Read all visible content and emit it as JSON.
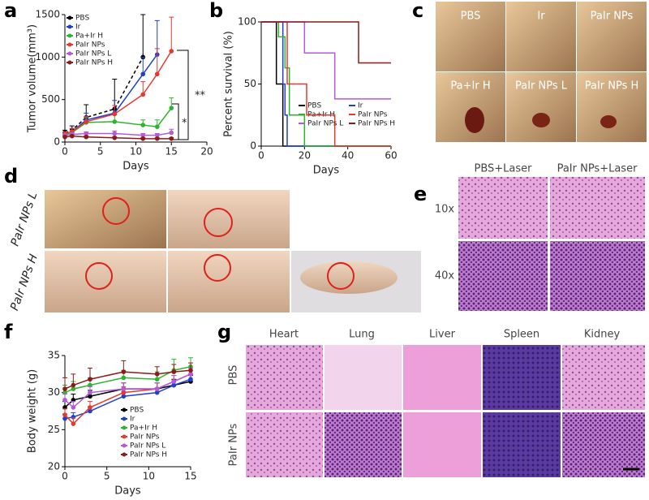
{
  "panels": [
    "a",
    "b",
    "c",
    "d",
    "e",
    "f",
    "g"
  ],
  "chart_data": [
    {
      "type": "line",
      "xlabel": "Days",
      "ylabel": "Tumor volume(mm³)",
      "xlim": [
        0,
        20
      ],
      "xticks": [
        0,
        5,
        10,
        15,
        20
      ],
      "ylim": [
        0,
        1500
      ],
      "yticks": [
        0,
        500,
        1000,
        1500
      ],
      "legend": "upper left",
      "annotations": [
        "**",
        "*"
      ],
      "x": [
        0,
        1,
        3,
        7,
        11,
        13,
        15
      ],
      "series": [
        {
          "name": "PBS",
          "color": "#000000",
          "dashed": true,
          "values": [
            110,
            140,
            290,
            390,
            1000,
            null,
            null
          ],
          "errors": [
            30,
            50,
            150,
            350,
            500,
            null,
            null
          ]
        },
        {
          "name": "Ir",
          "color": "#1f3fd1",
          "values": [
            100,
            120,
            260,
            340,
            800,
            1030,
            null
          ],
          "errors": [
            20,
            40,
            80,
            150,
            200,
            400,
            null
          ]
        },
        {
          "name": "Pa+Ir H",
          "color": "#2cb52c",
          "values": [
            90,
            110,
            230,
            240,
            200,
            180,
            400
          ],
          "errors": [
            20,
            30,
            60,
            80,
            60,
            80,
            120
          ]
        },
        {
          "name": "PaIr NPs",
          "color": "#e8382e",
          "values": [
            100,
            120,
            240,
            330,
            560,
            800,
            1070
          ],
          "errors": [
            20,
            40,
            60,
            100,
            150,
            300,
            400
          ]
        },
        {
          "name": "PaIr NPs L",
          "color": "#b45ad8",
          "values": [
            80,
            90,
            100,
            100,
            80,
            80,
            110
          ],
          "errors": [
            10,
            20,
            20,
            30,
            20,
            20,
            40
          ]
        },
        {
          "name": "PaIr NPs H",
          "color": "#8b1a1a",
          "values": [
            60,
            70,
            60,
            50,
            40,
            40,
            40
          ],
          "errors": [
            10,
            10,
            10,
            10,
            10,
            10,
            10
          ]
        }
      ]
    },
    {
      "type": "step",
      "xlabel": "Days",
      "ylabel": "Percent survival (%)",
      "xlim": [
        0,
        60
      ],
      "xticks": [
        0,
        20,
        40,
        60
      ],
      "ylim": [
        0,
        100
      ],
      "yticks": [
        0,
        50,
        100
      ],
      "legend": "lower center",
      "series": [
        {
          "name": "PBS",
          "color": "#000000",
          "x": [
            0,
            7,
            10
          ],
          "values": [
            100,
            50,
            0
          ]
        },
        {
          "name": "Ir",
          "color": "#1f3fd1",
          "x": [
            0,
            10,
            11,
            12
          ],
          "values": [
            100,
            50,
            25,
            0
          ]
        },
        {
          "name": "Pa+Ir H",
          "color": "#2cb52c",
          "x": [
            0,
            8,
            11,
            13,
            20
          ],
          "values": [
            100,
            88,
            63,
            25,
            0
          ]
        },
        {
          "name": "PaIr NPs",
          "color": "#e8382e",
          "x": [
            0,
            12,
            21,
            34
          ],
          "values": [
            100,
            50,
            25,
            0
          ]
        },
        {
          "name": "PaIr NPs L",
          "color": "#b45ad8",
          "x": [
            0,
            20,
            34,
            60
          ],
          "values": [
            100,
            75,
            38,
            38
          ]
        },
        {
          "name": "PaIr NPs H",
          "color": "#8b1a1a",
          "x": [
            0,
            45,
            60
          ],
          "values": [
            100,
            67,
            67
          ]
        }
      ]
    },
    {
      "type": "line",
      "xlabel": "Days",
      "ylabel": "Body weight (g)",
      "xlim": [
        0,
        15
      ],
      "xticks": [
        0,
        5,
        10,
        15
      ],
      "ylim": [
        20,
        35
      ],
      "yticks": [
        20,
        25,
        30,
        35
      ],
      "legend": "lower right",
      "x": [
        0,
        1,
        3,
        7,
        11,
        13,
        15
      ],
      "series": [
        {
          "name": "PBS",
          "color": "#000000",
          "values": [
            28,
            29,
            29.5,
            30.5,
            30.5,
            31,
            31.5
          ],
          "errors": [
            0.8,
            0.8,
            0.8,
            0.8,
            0.8,
            0.8,
            0.8
          ]
        },
        {
          "name": "Ir",
          "color": "#1f3fd1",
          "values": [
            26.5,
            26.7,
            27.5,
            29.5,
            30,
            31,
            31.8
          ],
          "errors": [
            0.6,
            0.6,
            0.6,
            0.6,
            0.6,
            0.6,
            0.6
          ]
        },
        {
          "name": "Pa+Ir H",
          "color": "#2cb52c",
          "values": [
            30,
            30.5,
            31,
            32,
            31.8,
            33,
            33.5
          ],
          "errors": [
            1,
            1,
            1,
            1,
            1,
            1.5,
            1.2
          ]
        },
        {
          "name": "PaIr NPs",
          "color": "#e8382e",
          "values": [
            27,
            25.8,
            28,
            30,
            30.5,
            31.5,
            32.5
          ],
          "errors": [
            0.8,
            0.8,
            0.8,
            0.8,
            0.8,
            0.8,
            0.8
          ]
        },
        {
          "name": "PaIr NPs L",
          "color": "#b45ad8",
          "values": [
            29,
            28,
            30,
            30.5,
            30.5,
            31.5,
            32.5
          ],
          "errors": [
            0.8,
            0.8,
            0.8,
            0.8,
            0.8,
            0.8,
            0.8
          ]
        },
        {
          "name": "PaIr NPs H",
          "color": "#8b1a1a",
          "values": [
            30.5,
            31,
            31.8,
            32.8,
            32.5,
            32.8,
            33
          ],
          "errors": [
            1.5,
            1.5,
            1.5,
            1.5,
            1,
            1,
            1
          ]
        }
      ]
    }
  ],
  "photos_c": [
    "PBS",
    "Ir",
    "PaIr NPs",
    "Pa+Ir H",
    "PaIr NPs L",
    "PaIr NPs H"
  ],
  "photos_d": {
    "rows": [
      "PaIr NPs L",
      "PaIr NPs H"
    ]
  },
  "histology_e": {
    "columns": [
      "PBS+Laser",
      "PaIr NPs+Laser"
    ],
    "rows": [
      "10x",
      "40x"
    ]
  },
  "histology_g": {
    "columns": [
      "Heart",
      "Lung",
      "Liver",
      "Spleen",
      "Kidney"
    ],
    "rows": [
      "PBS",
      "PaIr NPs"
    ]
  }
}
